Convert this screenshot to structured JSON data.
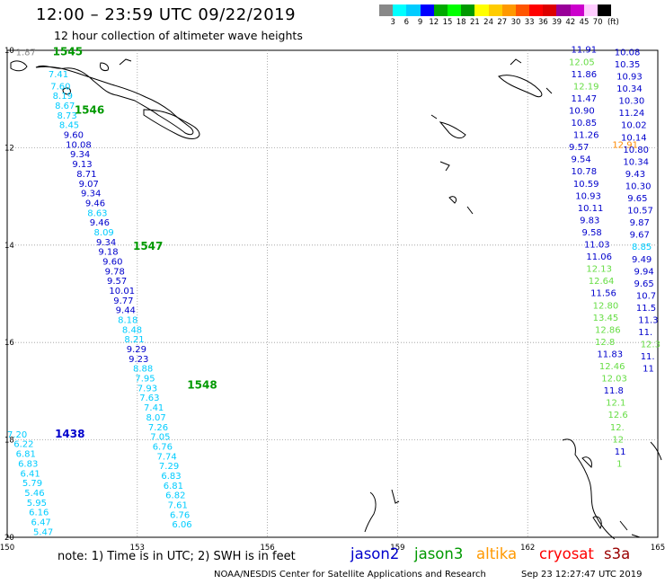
{
  "header": {
    "title": "12:00 – 23:59 UTC 09/22/2019",
    "subtitle": "12 hour collection of altimeter wave heights"
  },
  "legend": {
    "colors": [
      "#888888",
      "#00ffff",
      "#00ccff",
      "#0000ff",
      "#00aa00",
      "#00ff00",
      "#009900",
      "#ffff00",
      "#ffcc00",
      "#ff9900",
      "#ff5500",
      "#ff0000",
      "#dd0000",
      "#990099",
      "#cc00cc",
      "#ffccff",
      "#000000"
    ],
    "labels": [
      "3",
      "6",
      "9",
      "12",
      "15",
      "18",
      "21",
      "24",
      "27",
      "30",
      "33",
      "36",
      "39",
      "42",
      "45",
      "70",
      "(ft)"
    ]
  },
  "map": {
    "lon_range": [
      150,
      165
    ],
    "lat_range": [
      -20,
      -10
    ],
    "lon_ticks": [
      "150",
      "153",
      "156",
      "159",
      "162",
      "165"
    ],
    "lat_ticks": [
      "10",
      "12",
      "14",
      "16",
      "18",
      "20"
    ],
    "pass_labels": [
      {
        "text": "1545",
        "lon": 151.05,
        "lat": -10.1,
        "color": "#009900"
      },
      {
        "text": "1546",
        "lon": 151.55,
        "lat": -11.3,
        "color": "#009900"
      },
      {
        "text": "1547",
        "lon": 152.9,
        "lat": -14.1,
        "color": "#009900"
      },
      {
        "text": "1548",
        "lon": 154.15,
        "lat": -16.95,
        "color": "#009900"
      },
      {
        "text": "1438",
        "lon": 151.1,
        "lat": -17.95,
        "color": "#0000cc"
      }
    ],
    "tracks": [
      {
        "name": "west",
        "points": [
          {
            "lon": 150.2,
            "lat": -10.1,
            "v": "1.87",
            "c": "#888888"
          },
          {
            "lon": 150.95,
            "lat": -10.55,
            "v": "7.41",
            "c": "#00ccff"
          },
          {
            "lon": 151.0,
            "lat": -10.8,
            "v": "7.60",
            "c": "#00ccff"
          },
          {
            "lon": 151.05,
            "lat": -11.0,
            "v": "8.19",
            "c": "#00ccff"
          },
          {
            "lon": 151.1,
            "lat": -11.2,
            "v": "8.67",
            "c": "#00ccff"
          },
          {
            "lon": 151.15,
            "lat": -11.4,
            "v": "8.73",
            "c": "#00ccff"
          },
          {
            "lon": 151.2,
            "lat": -11.6,
            "v": "8.45",
            "c": "#00ccff"
          },
          {
            "lon": 151.3,
            "lat": -11.8,
            "v": "9.60",
            "c": "#0000cc"
          },
          {
            "lon": 151.35,
            "lat": -12.0,
            "v": "10.08",
            "c": "#0000cc"
          },
          {
            "lon": 151.45,
            "lat": -12.2,
            "v": "9.34",
            "c": "#0000cc"
          },
          {
            "lon": 151.5,
            "lat": -12.4,
            "v": "9.13",
            "c": "#0000cc"
          },
          {
            "lon": 151.6,
            "lat": -12.6,
            "v": "8.71",
            "c": "#0000cc"
          },
          {
            "lon": 151.65,
            "lat": -12.8,
            "v": "9.07",
            "c": "#0000cc"
          },
          {
            "lon": 151.7,
            "lat": -13.0,
            "v": "9.34",
            "c": "#0000cc"
          },
          {
            "lon": 151.8,
            "lat": -13.2,
            "v": "9.46",
            "c": "#0000cc"
          },
          {
            "lon": 151.85,
            "lat": -13.4,
            "v": "8.63",
            "c": "#00ccff"
          },
          {
            "lon": 151.9,
            "lat": -13.6,
            "v": "9.46",
            "c": "#0000cc"
          },
          {
            "lon": 152.0,
            "lat": -13.8,
            "v": "8.09",
            "c": "#00ccff"
          },
          {
            "lon": 152.05,
            "lat": -14.0,
            "v": "9.34",
            "c": "#0000cc"
          },
          {
            "lon": 152.1,
            "lat": -14.2,
            "v": "9.18",
            "c": "#0000cc"
          },
          {
            "lon": 152.2,
            "lat": -14.4,
            "v": "9.60",
            "c": "#0000cc"
          },
          {
            "lon": 152.25,
            "lat": -14.6,
            "v": "9.78",
            "c": "#0000cc"
          },
          {
            "lon": 152.3,
            "lat": -14.8,
            "v": "9.57",
            "c": "#0000cc"
          },
          {
            "lon": 152.35,
            "lat": -15.0,
            "v": "10.01",
            "c": "#0000cc"
          },
          {
            "lon": 152.45,
            "lat": -15.2,
            "v": "9.77",
            "c": "#0000cc"
          },
          {
            "lon": 152.5,
            "lat": -15.4,
            "v": "9.44",
            "c": "#0000cc"
          },
          {
            "lon": 152.55,
            "lat": -15.6,
            "v": "8.18",
            "c": "#00ccff"
          },
          {
            "lon": 152.65,
            "lat": -15.8,
            "v": "8.48",
            "c": "#00ccff"
          },
          {
            "lon": 152.7,
            "lat": -16.0,
            "v": "8.21",
            "c": "#00ccff"
          },
          {
            "lon": 152.75,
            "lat": -16.2,
            "v": "9.29",
            "c": "#0000cc"
          },
          {
            "lon": 152.8,
            "lat": -16.4,
            "v": "9.23",
            "c": "#0000cc"
          },
          {
            "lon": 152.9,
            "lat": -16.6,
            "v": "8.88",
            "c": "#00ccff"
          },
          {
            "lon": 152.95,
            "lat": -16.8,
            "v": "7.95",
            "c": "#00ccff"
          },
          {
            "lon": 153.0,
            "lat": -17.0,
            "v": "7.93",
            "c": "#00ccff"
          },
          {
            "lon": 153.05,
            "lat": -17.2,
            "v": "7.63",
            "c": "#00ccff"
          },
          {
            "lon": 153.15,
            "lat": -17.4,
            "v": "7.41",
            "c": "#00ccff"
          },
          {
            "lon": 153.2,
            "lat": -17.6,
            "v": "8.07",
            "c": "#00ccff"
          },
          {
            "lon": 153.25,
            "lat": -17.8,
            "v": "7.26",
            "c": "#00ccff"
          },
          {
            "lon": 153.3,
            "lat": -18.0,
            "v": "7.05",
            "c": "#00ccff"
          },
          {
            "lon": 153.35,
            "lat": -18.2,
            "v": "6.76",
            "c": "#00ccff"
          },
          {
            "lon": 153.45,
            "lat": -18.4,
            "v": "7.74",
            "c": "#00ccff"
          },
          {
            "lon": 153.5,
            "lat": -18.6,
            "v": "7.29",
            "c": "#00ccff"
          },
          {
            "lon": 153.55,
            "lat": -18.8,
            "v": "6.83",
            "c": "#00ccff"
          },
          {
            "lon": 153.6,
            "lat": -19.0,
            "v": "6.81",
            "c": "#00ccff"
          },
          {
            "lon": 153.65,
            "lat": -19.2,
            "v": "6.82",
            "c": "#00ccff"
          },
          {
            "lon": 153.7,
            "lat": -19.4,
            "v": "7.61",
            "c": "#00ccff"
          },
          {
            "lon": 153.75,
            "lat": -19.6,
            "v": "6.76",
            "c": "#00ccff"
          },
          {
            "lon": 153.8,
            "lat": -19.8,
            "v": "6.06",
            "c": "#00ccff"
          }
        ]
      },
      {
        "name": "southwest",
        "points": [
          {
            "lon": 150.0,
            "lat": -17.95,
            "v": "7.20",
            "c": "#00ccff"
          },
          {
            "lon": 150.15,
            "lat": -18.15,
            "v": "6.22",
            "c": "#00ccff"
          },
          {
            "lon": 150.2,
            "lat": -18.35,
            "v": "6.81",
            "c": "#00ccff"
          },
          {
            "lon": 150.25,
            "lat": -18.55,
            "v": "6.83",
            "c": "#00ccff"
          },
          {
            "lon": 150.3,
            "lat": -18.75,
            "v": "6.41",
            "c": "#00ccff"
          },
          {
            "lon": 150.35,
            "lat": -18.95,
            "v": "5.79",
            "c": "#00ccff"
          },
          {
            "lon": 150.4,
            "lat": -19.15,
            "v": "5.46",
            "c": "#00ccff"
          },
          {
            "lon": 150.45,
            "lat": -19.35,
            "v": "5.95",
            "c": "#00ccff"
          },
          {
            "lon": 150.5,
            "lat": -19.55,
            "v": "6.16",
            "c": "#00ccff"
          },
          {
            "lon": 150.55,
            "lat": -19.75,
            "v": "6.47",
            "c": "#00ccff"
          },
          {
            "lon": 150.6,
            "lat": -19.95,
            "v": "5.47",
            "c": "#00ccff"
          }
        ]
      },
      {
        "name": "east-a",
        "points": [
          {
            "lon": 163.0,
            "lat": -10.05,
            "v": "11.91",
            "c": "#0000cc"
          },
          {
            "lon": 162.95,
            "lat": -10.3,
            "v": "12.05",
            "c": "#66dd44"
          },
          {
            "lon": 163.0,
            "lat": -10.55,
            "v": "11.86",
            "c": "#0000cc"
          },
          {
            "lon": 163.05,
            "lat": -10.8,
            "v": "12.19",
            "c": "#66dd44"
          },
          {
            "lon": 163.0,
            "lat": -11.05,
            "v": "11.47",
            "c": "#0000cc"
          },
          {
            "lon": 162.95,
            "lat": -11.3,
            "v": "10.90",
            "c": "#0000cc"
          },
          {
            "lon": 163.0,
            "lat": -11.55,
            "v": "10.85",
            "c": "#0000cc"
          },
          {
            "lon": 163.05,
            "lat": -11.8,
            "v": "11.26",
            "c": "#0000cc"
          },
          {
            "lon": 162.95,
            "lat": -12.05,
            "v": "9.57",
            "c": "#0000cc"
          },
          {
            "lon": 163.0,
            "lat": -12.3,
            "v": "9.54",
            "c": "#0000cc"
          },
          {
            "lon": 163.0,
            "lat": -12.55,
            "v": "10.78",
            "c": "#0000cc"
          },
          {
            "lon": 163.05,
            "lat": -12.8,
            "v": "10.59",
            "c": "#0000cc"
          },
          {
            "lon": 163.1,
            "lat": -13.05,
            "v": "10.93",
            "c": "#0000cc"
          },
          {
            "lon": 163.15,
            "lat": -13.3,
            "v": "10.11",
            "c": "#0000cc"
          },
          {
            "lon": 163.2,
            "lat": -13.55,
            "v": "9.83",
            "c": "#0000cc"
          },
          {
            "lon": 163.25,
            "lat": -13.8,
            "v": "9.58",
            "c": "#0000cc"
          },
          {
            "lon": 163.3,
            "lat": -14.05,
            "v": "11.03",
            "c": "#0000cc"
          },
          {
            "lon": 163.35,
            "lat": -14.3,
            "v": "11.06",
            "c": "#0000cc"
          },
          {
            "lon": 163.35,
            "lat": -14.55,
            "v": "12.13",
            "c": "#66dd44"
          },
          {
            "lon": 163.4,
            "lat": -14.8,
            "v": "12.64",
            "c": "#66dd44"
          },
          {
            "lon": 163.45,
            "lat": -15.05,
            "v": "11.56",
            "c": "#0000cc"
          },
          {
            "lon": 163.5,
            "lat": -15.3,
            "v": "12.80",
            "c": "#66dd44"
          },
          {
            "lon": 163.5,
            "lat": -15.55,
            "v": "13.45",
            "c": "#66dd44"
          },
          {
            "lon": 163.55,
            "lat": -15.8,
            "v": "12.86",
            "c": "#66dd44"
          },
          {
            "lon": 163.55,
            "lat": -16.05,
            "v": "12.8",
            "c": "#66dd44"
          },
          {
            "lon": 163.6,
            "lat": -16.3,
            "v": "11.83",
            "c": "#0000cc"
          },
          {
            "lon": 163.65,
            "lat": -16.55,
            "v": "12.46",
            "c": "#66dd44"
          },
          {
            "lon": 163.7,
            "lat": -16.8,
            "v": "12.03",
            "c": "#66dd44"
          },
          {
            "lon": 163.75,
            "lat": -17.05,
            "v": "11.8",
            "c": "#0000cc"
          },
          {
            "lon": 163.8,
            "lat": -17.3,
            "v": "12.1",
            "c": "#66dd44"
          },
          {
            "lon": 163.85,
            "lat": -17.55,
            "v": "12.6",
            "c": "#66dd44"
          },
          {
            "lon": 163.9,
            "lat": -17.8,
            "v": "12.",
            "c": "#66dd44"
          },
          {
            "lon": 163.95,
            "lat": -18.05,
            "v": "12",
            "c": "#66dd44"
          },
          {
            "lon": 164.0,
            "lat": -18.3,
            "v": "11",
            "c": "#0000cc"
          },
          {
            "lon": 164.05,
            "lat": -18.55,
            "v": "1",
            "c": "#66dd44"
          }
        ]
      },
      {
        "name": "east-b",
        "points": [
          {
            "lon": 164.0,
            "lat": -10.1,
            "v": "10.08",
            "c": "#0000cc"
          },
          {
            "lon": 164.0,
            "lat": -10.35,
            "v": "10.35",
            "c": "#0000cc"
          },
          {
            "lon": 164.05,
            "lat": -10.6,
            "v": "10.93",
            "c": "#0000cc"
          },
          {
            "lon": 164.05,
            "lat": -10.85,
            "v": "10.34",
            "c": "#0000cc"
          },
          {
            "lon": 164.1,
            "lat": -11.1,
            "v": "10.30",
            "c": "#0000cc"
          },
          {
            "lon": 164.1,
            "lat": -11.35,
            "v": "11.24",
            "c": "#0000cc"
          },
          {
            "lon": 164.15,
            "lat": -11.6,
            "v": "10.02",
            "c": "#0000cc"
          },
          {
            "lon": 164.15,
            "lat": -11.85,
            "v": "10.14",
            "c": "#0000cc"
          },
          {
            "lon": 163.95,
            "lat": -12.0,
            "v": "12.91",
            "c": "#ff8800"
          },
          {
            "lon": 164.2,
            "lat": -12.1,
            "v": "10.80",
            "c": "#0000cc"
          },
          {
            "lon": 164.2,
            "lat": -12.35,
            "v": "10.34",
            "c": "#0000cc"
          },
          {
            "lon": 164.25,
            "lat": -12.6,
            "v": "9.43",
            "c": "#0000cc"
          },
          {
            "lon": 164.25,
            "lat": -12.85,
            "v": "10.30",
            "c": "#0000cc"
          },
          {
            "lon": 164.3,
            "lat": -13.1,
            "v": "9.65",
            "c": "#0000cc"
          },
          {
            "lon": 164.3,
            "lat": -13.35,
            "v": "10.57",
            "c": "#0000cc"
          },
          {
            "lon": 164.35,
            "lat": -13.6,
            "v": "9.87",
            "c": "#0000cc"
          },
          {
            "lon": 164.35,
            "lat": -13.85,
            "v": "9.67",
            "c": "#0000cc"
          },
          {
            "lon": 164.4,
            "lat": -14.1,
            "v": "8.85",
            "c": "#00ccff"
          },
          {
            "lon": 164.4,
            "lat": -14.35,
            "v": "9.49",
            "c": "#0000cc"
          },
          {
            "lon": 164.45,
            "lat": -14.6,
            "v": "9.94",
            "c": "#0000cc"
          },
          {
            "lon": 164.45,
            "lat": -14.85,
            "v": "9.65",
            "c": "#0000cc"
          },
          {
            "lon": 164.5,
            "lat": -15.1,
            "v": "10.7",
            "c": "#0000cc"
          },
          {
            "lon": 164.5,
            "lat": -15.35,
            "v": "11.5",
            "c": "#0000cc"
          },
          {
            "lon": 164.55,
            "lat": -15.6,
            "v": "11.3",
            "c": "#0000cc"
          },
          {
            "lon": 164.55,
            "lat": -15.85,
            "v": "11.",
            "c": "#0000cc"
          },
          {
            "lon": 164.6,
            "lat": -16.1,
            "v": "12.3",
            "c": "#66dd44"
          },
          {
            "lon": 164.6,
            "lat": -16.35,
            "v": "11.",
            "c": "#0000cc"
          },
          {
            "lon": 164.65,
            "lat": -16.6,
            "v": "11",
            "c": "#0000cc"
          }
        ]
      }
    ],
    "coast_color": "#000000",
    "grid_color": "#9a9a9a"
  },
  "footer": {
    "note": "note:  1) Time is in UTC;  2) SWH is in feet",
    "satellites": [
      {
        "name": "jason2",
        "color": "#0000cc"
      },
      {
        "name": "jason3",
        "color": "#009900"
      },
      {
        "name": "altika",
        "color": "#ff9900"
      },
      {
        "name": "cryosat",
        "color": "#ff0000"
      },
      {
        "name": "s3a",
        "color": "#990000"
      }
    ],
    "credit": "NOAA/NESDIS Center for Satellite Applications and Research",
    "timestamp": "Sep 23 12:27:47 UTC 2019"
  }
}
